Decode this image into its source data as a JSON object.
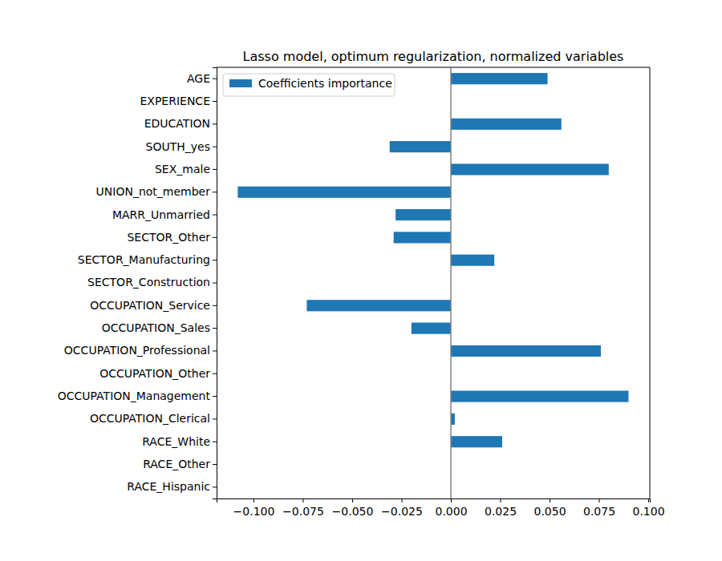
{
  "chart_data": {
    "type": "bar",
    "orientation": "horizontal",
    "title": "Lasso model, optimum regularization, normalized variables",
    "categories": [
      "AGE",
      "EXPERIENCE",
      "EDUCATION",
      "SOUTH_yes",
      "SEX_male",
      "UNION_not_member",
      "MARR_Unmarried",
      "SECTOR_Other",
      "SECTOR_Manufacturing",
      "SECTOR_Construction",
      "OCCUPATION_Service",
      "OCCUPATION_Sales",
      "OCCUPATION_Professional",
      "OCCUPATION_Other",
      "OCCUPATION_Management",
      "OCCUPATION_Clerical",
      "RACE_White",
      "RACE_Other",
      "RACE_Hispanic"
    ],
    "series": [
      {
        "name": "Coefficients importance",
        "color": "#1f77b4",
        "values": [
          0.049,
          0,
          0.056,
          -0.031,
          0.08,
          -0.108,
          -0.028,
          -0.029,
          0.022,
          0,
          -0.073,
          -0.02,
          0.076,
          0,
          0.09,
          0.002,
          0.026,
          0,
          0
        ]
      }
    ],
    "xlim": [
      -0.1187,
      0.1008
    ],
    "xticks": [
      {
        "value": -0.1,
        "label": "−0.100"
      },
      {
        "value": -0.075,
        "label": "−0.075"
      },
      {
        "value": -0.05,
        "label": "−0.050"
      },
      {
        "value": -0.025,
        "label": "−0.025"
      },
      {
        "value": 0,
        "label": "0.000"
      },
      {
        "value": 0.025,
        "label": "0.025"
      },
      {
        "value": 0.05,
        "label": "0.050"
      },
      {
        "value": 0.075,
        "label": "0.075"
      },
      {
        "value": 0.1,
        "label": "0.100"
      }
    ],
    "legend": "upper left",
    "grid": false
  }
}
